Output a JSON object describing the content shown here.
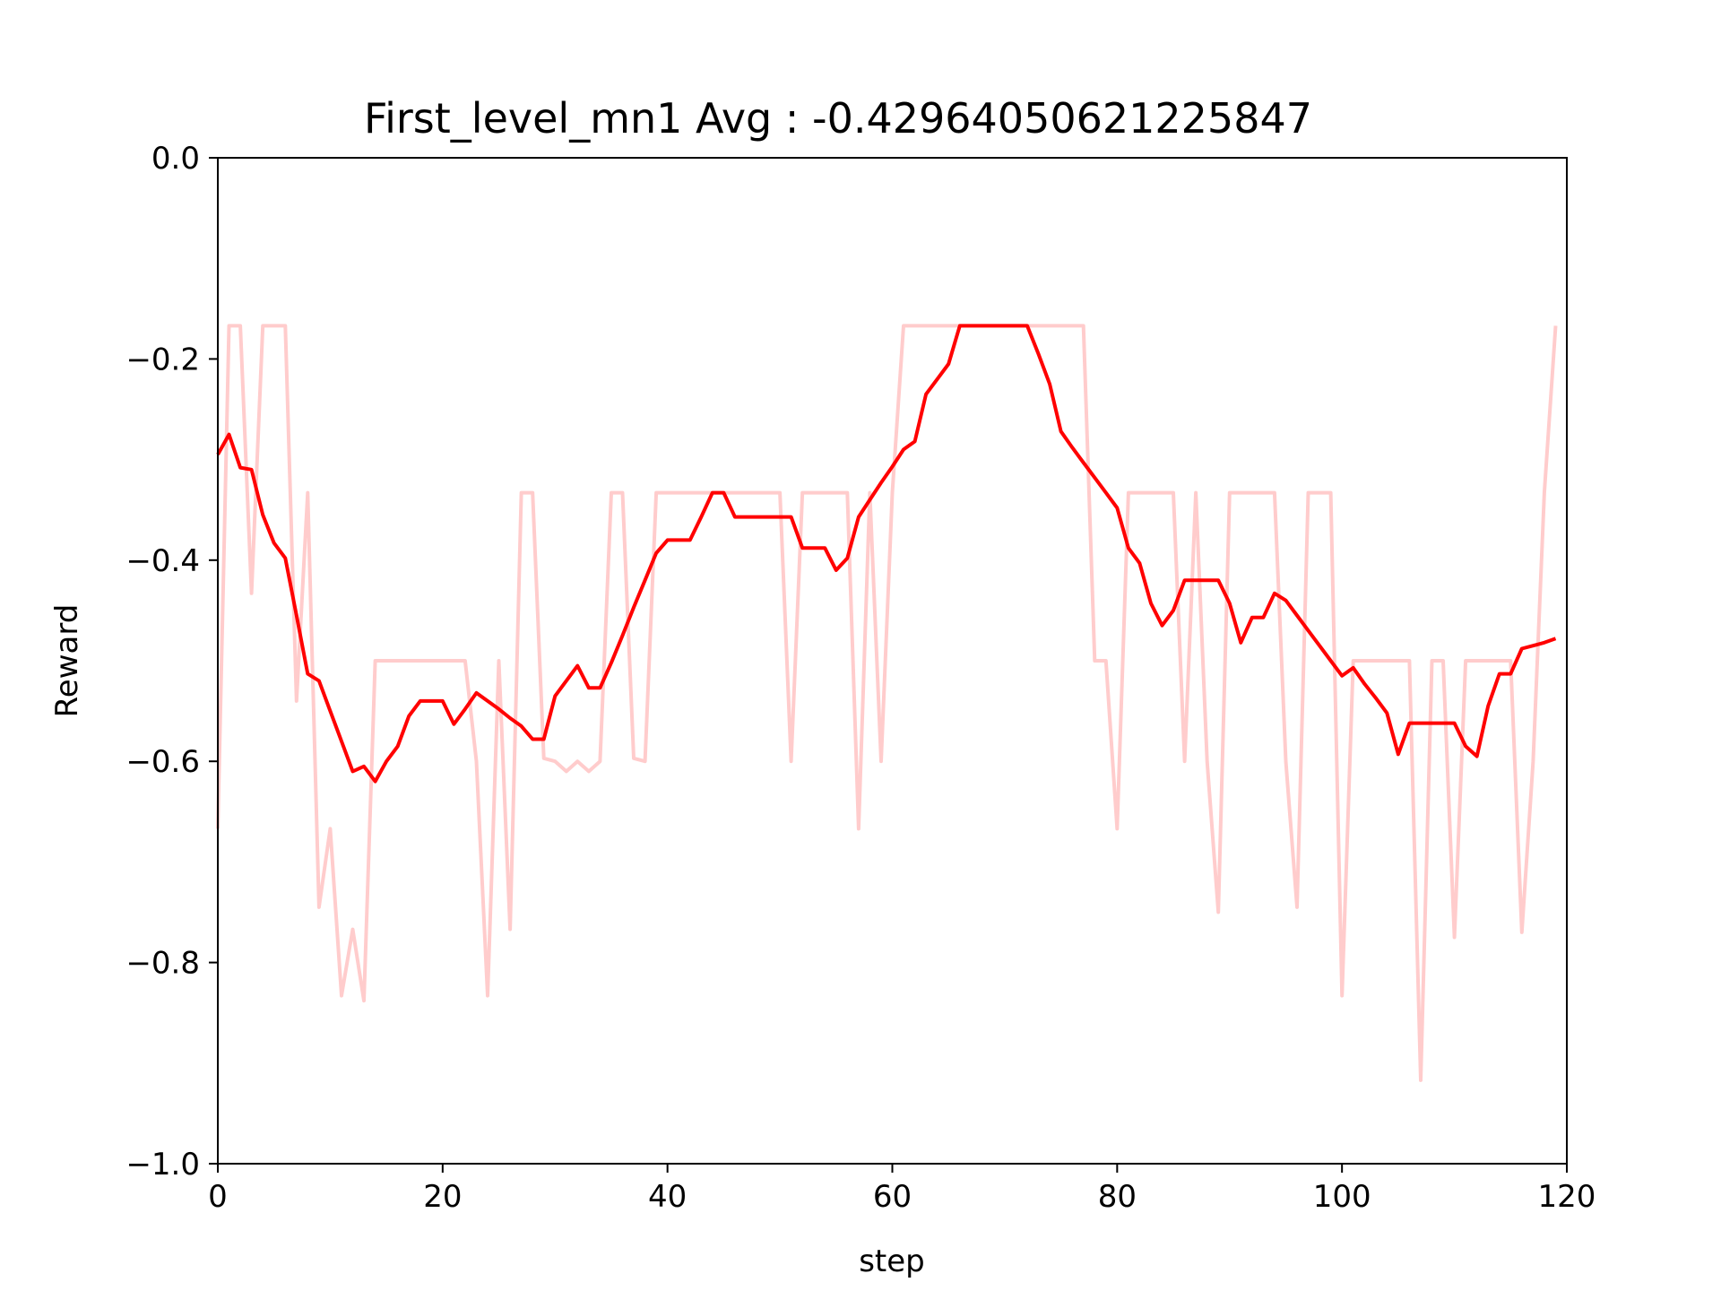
{
  "chart_data": {
    "type": "line",
    "title": "First_level_mn1 Avg : -0.42964050621225847",
    "xlabel": "step",
    "ylabel": "Reward",
    "xlim": [
      0,
      120
    ],
    "ylim": [
      -1.0,
      0.0
    ],
    "xticks": [
      "0",
      "20",
      "40",
      "60",
      "80",
      "100",
      "120"
    ],
    "yticks": [
      "0.0",
      "−0.2",
      "−0.4",
      "−0.6",
      "−0.8",
      "−1.0"
    ],
    "grid": false,
    "legend": "none",
    "series": [
      {
        "color": "#ffcccc",
        "x": [
          0,
          1,
          2,
          3,
          4,
          5,
          6,
          7,
          8,
          9,
          10,
          11,
          12,
          13,
          14,
          15,
          16,
          17,
          18,
          19,
          20,
          21,
          22,
          23,
          24,
          25,
          26,
          27,
          28,
          29,
          30,
          31,
          32,
          33,
          34,
          35,
          36,
          37,
          38,
          39,
          40,
          41,
          42,
          43,
          44,
          45,
          46,
          47,
          48,
          49,
          50,
          51,
          52,
          53,
          54,
          55,
          56,
          57,
          58,
          59,
          60,
          61,
          62,
          63,
          64,
          65,
          66,
          67,
          68,
          69,
          70,
          71,
          72,
          73,
          74,
          75,
          76,
          77,
          78,
          79,
          80,
          81,
          82,
          83,
          84,
          85,
          86,
          87,
          88,
          89,
          90,
          91,
          92,
          93,
          94,
          95,
          96,
          97,
          98,
          99,
          100,
          101,
          102,
          103,
          104,
          105,
          106,
          107,
          108,
          109,
          110,
          111,
          112,
          113,
          114,
          115,
          116,
          117,
          118,
          119
        ],
        "values": [
          -0.667,
          -0.167,
          -0.167,
          -0.433,
          -0.167,
          -0.167,
          -0.167,
          -0.54,
          -0.333,
          -0.745,
          -0.667,
          -0.833,
          -0.767,
          -0.838,
          -0.5,
          -0.5,
          -0.5,
          -0.5,
          -0.5,
          -0.5,
          -0.5,
          -0.5,
          -0.5,
          -0.6,
          -0.833,
          -0.5,
          -0.767,
          -0.333,
          -0.333,
          -0.597,
          -0.6,
          -0.61,
          -0.6,
          -0.61,
          -0.6,
          -0.333,
          -0.333,
          -0.597,
          -0.6,
          -0.333,
          -0.333,
          -0.333,
          -0.333,
          -0.333,
          -0.333,
          -0.333,
          -0.333,
          -0.333,
          -0.333,
          -0.333,
          -0.333,
          -0.6,
          -0.333,
          -0.333,
          -0.333,
          -0.333,
          -0.333,
          -0.667,
          -0.333,
          -0.6,
          -0.333,
          -0.167,
          -0.167,
          -0.167,
          -0.167,
          -0.167,
          -0.167,
          -0.167,
          -0.167,
          -0.167,
          -0.167,
          -0.167,
          -0.167,
          -0.167,
          -0.167,
          -0.167,
          -0.167,
          -0.167,
          -0.5,
          -0.5,
          -0.667,
          -0.333,
          -0.333,
          -0.333,
          -0.333,
          -0.333,
          -0.6,
          -0.333,
          -0.6,
          -0.75,
          -0.333,
          -0.333,
          -0.333,
          -0.333,
          -0.333,
          -0.6,
          -0.745,
          -0.333,
          -0.333,
          -0.333,
          -0.833,
          -0.5,
          -0.5,
          -0.5,
          -0.5,
          -0.5,
          -0.5,
          -0.917,
          -0.5,
          -0.5,
          -0.775,
          -0.5,
          -0.5,
          -0.5,
          -0.5,
          -0.5,
          -0.77,
          -0.6,
          -0.333,
          -0.167
        ]
      },
      {
        "color": "#ff0000",
        "x": [
          0,
          1,
          2,
          3,
          4,
          5,
          6,
          7,
          8,
          9,
          10,
          11,
          12,
          13,
          14,
          15,
          16,
          17,
          18,
          19,
          20,
          21,
          22,
          23,
          24,
          25,
          26,
          27,
          28,
          29,
          30,
          31,
          32,
          33,
          34,
          35,
          36,
          37,
          38,
          39,
          40,
          41,
          42,
          43,
          44,
          45,
          46,
          47,
          48,
          49,
          50,
          51,
          52,
          53,
          54,
          55,
          56,
          57,
          58,
          59,
          60,
          61,
          62,
          63,
          64,
          65,
          66,
          67,
          68,
          69,
          70,
          71,
          72,
          73,
          74,
          75,
          76,
          77,
          78,
          79,
          80,
          81,
          82,
          83,
          84,
          85,
          86,
          87,
          88,
          89,
          90,
          91,
          92,
          93,
          94,
          95,
          96,
          97,
          98,
          99,
          100,
          101,
          102,
          103,
          104,
          105,
          106,
          107,
          108,
          109,
          110,
          111,
          112,
          113,
          114,
          115,
          116,
          117,
          118,
          119
        ],
        "values": [
          -0.295,
          -0.275,
          -0.308,
          -0.31,
          -0.355,
          -0.383,
          -0.398,
          -0.455,
          -0.513,
          -0.52,
          -0.55,
          -0.58,
          -0.61,
          -0.605,
          -0.62,
          -0.6,
          -0.585,
          -0.555,
          -0.54,
          -0.54,
          -0.54,
          -0.563,
          -0.548,
          -0.532,
          -0.54,
          -0.548,
          -0.557,
          -0.565,
          -0.578,
          -0.578,
          -0.535,
          -0.52,
          -0.505,
          -0.527,
          -0.527,
          -0.502,
          -0.475,
          -0.447,
          -0.42,
          -0.393,
          -0.38,
          -0.38,
          -0.38,
          -0.357,
          -0.333,
          -0.333,
          -0.357,
          -0.357,
          -0.357,
          -0.357,
          -0.357,
          -0.357,
          -0.388,
          -0.388,
          -0.388,
          -0.41,
          -0.398,
          -0.357,
          -0.34,
          -0.323,
          -0.307,
          -0.29,
          -0.282,
          -0.235,
          -0.22,
          -0.205,
          -0.167,
          -0.167,
          -0.167,
          -0.167,
          -0.167,
          -0.167,
          -0.167,
          -0.195,
          -0.225,
          -0.272,
          -0.288,
          -0.303,
          -0.318,
          -0.333,
          -0.348,
          -0.388,
          -0.403,
          -0.443,
          -0.465,
          -0.45,
          -0.42,
          -0.42,
          -0.42,
          -0.42,
          -0.443,
          -0.482,
          -0.457,
          -0.457,
          -0.433,
          -0.44,
          -0.455,
          -0.47,
          -0.485,
          -0.5,
          -0.515,
          -0.507,
          -0.523,
          -0.537,
          -0.552,
          -0.593,
          -0.562,
          -0.562,
          -0.562,
          -0.562,
          -0.562,
          -0.585,
          -0.595,
          -0.545,
          -0.513,
          -0.513,
          -0.488,
          -0.485,
          -0.482,
          -0.478
        ]
      }
    ]
  }
}
